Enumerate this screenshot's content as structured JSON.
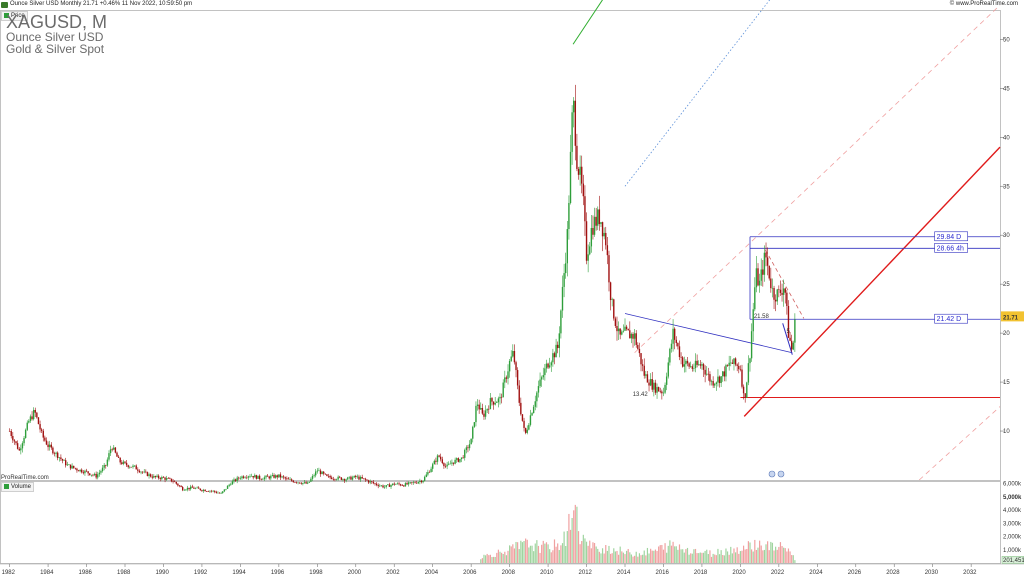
{
  "header": {
    "title": "Ounce Silver USD Monthly 21.71 +0.46% 11 Nov 2022, 10:59:50 pm",
    "site": "© www.ProRealTime.com"
  },
  "watermark": {
    "symbol": "XAGUSD, M",
    "name": "Ounce Silver USD",
    "group": "Gold & Silver Spot"
  },
  "panels": {
    "price_label": "Price",
    "volume_label": "Volume",
    "credit": "ProRealTime.com"
  },
  "colors": {
    "up": "#2e9e3a",
    "down": "#a01010",
    "trend_blue": "#3030c0",
    "support_red": "#e01b1b",
    "channel_dashed": "#f0a0a0",
    "dotted_blue": "#5b8fd8",
    "green_line": "#2fae2f",
    "last_price_bg": "#f2c230"
  },
  "chart_data": [
    {
      "type": "line",
      "title": "",
      "xlabel": "",
      "ylabel": "",
      "x_ticks": [
        "1982",
        "1984",
        "1986",
        "1988",
        "1990",
        "1992",
        "1994",
        "1996",
        "1998",
        "2000",
        "2002",
        "2004",
        "2006",
        "2008",
        "2010",
        "2012",
        "2014",
        "2016",
        "2018",
        "2020",
        "2022",
        "2024",
        "2026",
        "2028",
        "2030",
        "2032"
      ],
      "y_ticks": [
        "10",
        "15",
        "20",
        "25",
        "30",
        "35",
        "40",
        "45",
        "50"
      ],
      "ylim": [
        5,
        53
      ],
      "xlim": [
        1981.5,
        2033.5
      ],
      "legend": "none",
      "series": [
        {
          "x": [
            1982.0,
            1982.5,
            1983.0,
            1983.3,
            1983.7,
            1984.0,
            1984.5,
            1985.0,
            1985.5,
            1986.0,
            1986.5,
            1987.0,
            1987.3,
            1987.7,
            1988.0,
            1988.5,
            1989.0,
            1989.5,
            1990.0,
            1990.5,
            1991.0,
            1991.5,
            1992.0,
            1992.5,
            1993.0,
            1993.5,
            1994.0,
            1994.5,
            1995.0,
            1995.5,
            1996.0,
            1996.5,
            1997.0,
            1997.5,
            1998.0,
            1998.5,
            1999.0,
            1999.5,
            2000.0,
            2000.5,
            2001.0,
            2001.5,
            2002.0,
            2002.5,
            2003.0,
            2003.5,
            2004.0,
            2004.3,
            2004.7,
            2005.0,
            2005.5,
            2006.0,
            2006.3,
            2006.6,
            2007.0,
            2007.5,
            2008.0,
            2008.2,
            2008.5,
            2008.8,
            2009.0,
            2009.5,
            2010.0,
            2010.5,
            2011.0,
            2011.3,
            2011.5,
            2011.8,
            2012.0,
            2012.3,
            2012.7,
            2013.0,
            2013.3,
            2013.7,
            2014.0,
            2014.5,
            2015.0,
            2015.5,
            2016.0,
            2016.5,
            2017.0,
            2017.5,
            2018.0,
            2018.5,
            2019.0,
            2019.5,
            2020.0,
            2020.2,
            2020.5,
            2020.8,
            2021.0,
            2021.3,
            2021.7,
            2022.0,
            2022.3,
            2022.5,
            2022.7,
            2022.87
          ],
          "values": [
            10.0,
            8.0,
            11.0,
            12.0,
            9.5,
            8.5,
            7.5,
            6.5,
            6.1,
            5.8,
            5.4,
            6.5,
            8.5,
            6.9,
            6.6,
            6.3,
            5.7,
            5.3,
            5.2,
            4.9,
            4.1,
            4.2,
            4.0,
            3.9,
            3.6,
            4.7,
            5.3,
            5.5,
            5.2,
            5.3,
            5.4,
            5.0,
            4.8,
            4.6,
            6.0,
            5.3,
            5.2,
            5.1,
            5.3,
            5.0,
            4.6,
            4.3,
            4.6,
            4.5,
            4.7,
            5.0,
            6.5,
            7.5,
            6.3,
            6.8,
            7.2,
            9.0,
            13.0,
            11.5,
            13.0,
            13.2,
            17.0,
            18.0,
            13.0,
            9.5,
            11.0,
            14.5,
            17.0,
            18.5,
            30.0,
            44.0,
            38.0,
            34.0,
            28.0,
            31.0,
            32.0,
            29.5,
            23.0,
            19.5,
            20.0,
            19.7,
            15.8,
            14.5,
            14.0,
            20.0,
            17.0,
            16.5,
            16.8,
            15.0,
            15.5,
            17.0,
            16.5,
            13.0,
            18.0,
            26.0,
            25.0,
            28.0,
            24.0,
            24.0,
            25.0,
            20.0,
            18.0,
            21.71
          ]
        }
      ],
      "annotations": {
        "low_label": "13.42",
        "mid_label": "21.58",
        "small_label": "5",
        "level_boxes": [
          "29.84 D",
          "28.66 4h",
          "21.42 D"
        ],
        "last_price": "21.71"
      }
    },
    {
      "type": "bar",
      "title": "",
      "y_ticks": [
        "6,000k",
        "5,000k",
        "4,000k",
        "3,000k",
        "2,000k",
        "1,000k"
      ],
      "ylim": [
        0,
        6200000
      ],
      "last_value_label": "201,451",
      "series": [
        {
          "x": [
            2006.5,
            2007.0,
            2007.5,
            2008.0,
            2008.3,
            2008.7,
            2009.0,
            2009.5,
            2010.0,
            2010.5,
            2011.0,
            2011.3,
            2011.6,
            2012.0,
            2012.5,
            2013.0,
            2013.5,
            2014.0,
            2014.5,
            2015.0,
            2015.5,
            2016.0,
            2016.5,
            2017.0,
            2017.5,
            2018.0,
            2018.5,
            2019.0,
            2019.5,
            2020.0,
            2020.3,
            2020.7,
            2021.0,
            2021.5,
            2022.0,
            2022.5,
            2022.87
          ],
          "values": [
            500000,
            700000,
            900000,
            1100000,
            1300000,
            1500000,
            1600000,
            1400000,
            1300000,
            1500000,
            2200000,
            5600000,
            2600000,
            1600000,
            1200000,
            1300000,
            1100000,
            900000,
            800000,
            900000,
            1000000,
            1300000,
            1500000,
            1200000,
            1100000,
            900000,
            800000,
            1000000,
            1100000,
            1200000,
            1300000,
            1600000,
            1500000,
            1400000,
            1300000,
            1200000,
            200000
          ]
        }
      ]
    }
  ]
}
